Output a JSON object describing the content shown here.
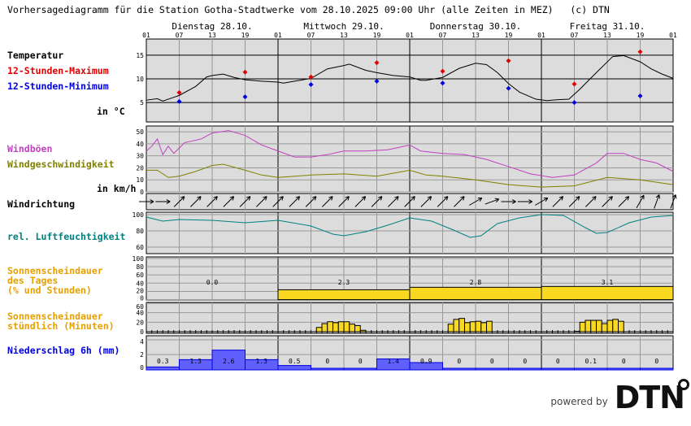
{
  "title": "Vorhersagediagramm für die Station Gotha-Stadtwerke vom 28.10.2025 09:00 Uhr (alle Zeiten in MEZ)   (c) DTN",
  "labels": {
    "temperature": "Temperatur",
    "max12": "12-Stunden-Maximum",
    "min12": "12-Stunden-Minimum",
    "unit_temp": "in °C",
    "gusts": "Windböen",
    "wind_speed": "Windgeschwindigkeit",
    "unit_wind": "in km/h",
    "wind_dir": "Windrichtung",
    "humidity": "rel. Luftfeuchtigkeit",
    "sun_daily": "Sonnenscheindauer\ndes Tages\n(% und Stunden)",
    "sun_hourly": "Sonnenscheindauer\nstündlich (Minuten)",
    "precip": "Niederschlag 6h (mm)"
  },
  "logo": {
    "powered_by": "powered by",
    "brand": "DTN"
  },
  "colors": {
    "max": "#e00000",
    "min": "#0000e0",
    "gusts": "#c040c0",
    "wind": "#808000",
    "humidity": "#008080",
    "sun": "#f8d820",
    "sun_label": "#e8a000",
    "precip": "#6060ff",
    "panel_bg": "#dcdcdc"
  },
  "chart_data": {
    "type": "line",
    "days": [
      "Dienstag 28.10.",
      "Mittwoch 29.10.",
      "Donnerstag 30.10.",
      "Freitag 31.10."
    ],
    "hour_ticks": [
      "01",
      "07",
      "13",
      "19",
      "01",
      "07",
      "13",
      "19",
      "01",
      "07",
      "13",
      "19",
      "01",
      "07",
      "13",
      "19",
      "01"
    ],
    "x_unit": "hours since 28.10. 01:00",
    "temperature": {
      "ylim": [
        0.9,
        18.4
      ],
      "ticks": [
        5,
        10,
        15
      ],
      "curve": [
        [
          0,
          5.5
        ],
        [
          2,
          5.8
        ],
        [
          3,
          5.3
        ],
        [
          5,
          6.1
        ],
        [
          6,
          6.5
        ],
        [
          9,
          8.4
        ],
        [
          11,
          10.4
        ],
        [
          12,
          10.7
        ],
        [
          14,
          11.0
        ],
        [
          16,
          10.3
        ],
        [
          18,
          9.8
        ],
        [
          21,
          9.5
        ],
        [
          24,
          9.3
        ],
        [
          25,
          9.1
        ],
        [
          27,
          9.5
        ],
        [
          30,
          10.1
        ],
        [
          33,
          12.1
        ],
        [
          36,
          12.8
        ],
        [
          37,
          13.1
        ],
        [
          40,
          11.8
        ],
        [
          42,
          11.3
        ],
        [
          45,
          10.7
        ],
        [
          48,
          10.4
        ],
        [
          50,
          9.7
        ],
        [
          51,
          9.7
        ],
        [
          54,
          10.3
        ],
        [
          57,
          12.2
        ],
        [
          60,
          13.3
        ],
        [
          62,
          13.0
        ],
        [
          64,
          11.3
        ],
        [
          66,
          9.0
        ],
        [
          68,
          7.2
        ],
        [
          71,
          5.7
        ],
        [
          73,
          5.4
        ],
        [
          75,
          5.6
        ],
        [
          77,
          5.7
        ],
        [
          79,
          7.8
        ],
        [
          82,
          11.3
        ],
        [
          85,
          14.7
        ],
        [
          87,
          14.9
        ],
        [
          90,
          13.6
        ],
        [
          92,
          12.1
        ],
        [
          94,
          11.0
        ],
        [
          96,
          10.1
        ]
      ],
      "max12": [
        [
          6,
          7.1
        ],
        [
          18,
          11.4
        ],
        [
          30,
          10.4
        ],
        [
          42,
          13.4
        ],
        [
          54,
          11.6
        ],
        [
          66,
          13.8
        ],
        [
          78,
          8.9
        ],
        [
          90,
          15.7
        ]
      ],
      "min12": [
        [
          6,
          5.2
        ],
        [
          18,
          6.2
        ],
        [
          30,
          8.8
        ],
        [
          42,
          9.5
        ],
        [
          54,
          9.1
        ],
        [
          66,
          8.0
        ],
        [
          78,
          5.0
        ],
        [
          90,
          6.4
        ]
      ]
    },
    "wind": {
      "ylim": [
        0,
        54.8
      ],
      "ticks": [
        0,
        10,
        20,
        30,
        40,
        50
      ],
      "gusts": [
        [
          0,
          34
        ],
        [
          1,
          38
        ],
        [
          2,
          44
        ],
        [
          3,
          31
        ],
        [
          4,
          38
        ],
        [
          5,
          32
        ],
        [
          7,
          41
        ],
        [
          10,
          44
        ],
        [
          12,
          49
        ],
        [
          15,
          51
        ],
        [
          18,
          47
        ],
        [
          21,
          39
        ],
        [
          24,
          34
        ],
        [
          27,
          29
        ],
        [
          30,
          29
        ],
        [
          33,
          31
        ],
        [
          36,
          34
        ],
        [
          40,
          34
        ],
        [
          44,
          35
        ],
        [
          48,
          39
        ],
        [
          50,
          34
        ],
        [
          54,
          32
        ],
        [
          58,
          31
        ],
        [
          62,
          27
        ],
        [
          66,
          21
        ],
        [
          70,
          15
        ],
        [
          74,
          12
        ],
        [
          78,
          14
        ],
        [
          82,
          24
        ],
        [
          84,
          32
        ],
        [
          87,
          32
        ],
        [
          90,
          27
        ],
        [
          93,
          24
        ],
        [
          96,
          17
        ]
      ],
      "speed": [
        [
          0,
          18
        ],
        [
          2,
          18
        ],
        [
          4,
          12
        ],
        [
          6,
          13
        ],
        [
          9,
          17
        ],
        [
          12,
          22
        ],
        [
          14,
          23
        ],
        [
          18,
          18
        ],
        [
          21,
          14
        ],
        [
          24,
          12
        ],
        [
          30,
          14
        ],
        [
          36,
          15
        ],
        [
          42,
          13
        ],
        [
          48,
          18
        ],
        [
          51,
          14
        ],
        [
          54,
          13
        ],
        [
          60,
          10
        ],
        [
          66,
          6
        ],
        [
          72,
          4
        ],
        [
          78,
          5
        ],
        [
          84,
          12
        ],
        [
          90,
          10
        ],
        [
          96,
          6
        ]
      ]
    },
    "wind_direction_deg": [
      270,
      270,
      225,
      225,
      225,
      225,
      225,
      225,
      225,
      225,
      225,
      225,
      225,
      225,
      225,
      225,
      225,
      225,
      225,
      225,
      240,
      250,
      270,
      270,
      240,
      225,
      225,
      225,
      225,
      225,
      210,
      200,
      200
    ],
    "humidity": {
      "ylim": [
        52,
        103
      ],
      "ticks": [
        60,
        80,
        100
      ],
      "values": [
        [
          0,
          97
        ],
        [
          3,
          92
        ],
        [
          6,
          94
        ],
        [
          12,
          93
        ],
        [
          18,
          90
        ],
        [
          24,
          93
        ],
        [
          30,
          86
        ],
        [
          34,
          76
        ],
        [
          36,
          74
        ],
        [
          40,
          79
        ],
        [
          44,
          87
        ],
        [
          48,
          96
        ],
        [
          52,
          92
        ],
        [
          56,
          81
        ],
        [
          59,
          72
        ],
        [
          61,
          74
        ],
        [
          64,
          89
        ],
        [
          68,
          96
        ],
        [
          72,
          100
        ],
        [
          76,
          99
        ],
        [
          80,
          84
        ],
        [
          82,
          77
        ],
        [
          84,
          78
        ],
        [
          88,
          90
        ],
        [
          92,
          97
        ],
        [
          96,
          99
        ]
      ]
    },
    "sun_daily": {
      "ylim": [
        0,
        100
      ],
      "ticks": [
        0,
        20,
        40,
        60,
        80,
        100
      ],
      "percent": [
        0,
        24,
        30,
        32
      ],
      "hours_labels": [
        "0.0",
        "2.3",
        "2.8",
        "3.1"
      ]
    },
    "sun_hourly": {
      "ylim": [
        0,
        60
      ],
      "ticks": [
        0,
        20,
        40,
        60
      ],
      "minutes": [
        [
          31,
          9
        ],
        [
          32,
          17
        ],
        [
          33,
          21
        ],
        [
          34,
          19
        ],
        [
          35,
          21
        ],
        [
          36,
          21
        ],
        [
          37,
          16
        ],
        [
          38,
          13
        ],
        [
          39,
          3
        ],
        [
          55,
          16
        ],
        [
          56,
          26
        ],
        [
          57,
          28
        ],
        [
          58,
          19
        ],
        [
          59,
          21
        ],
        [
          60,
          22
        ],
        [
          61,
          19
        ],
        [
          62,
          22
        ],
        [
          78,
          1
        ],
        [
          79,
          20
        ],
        [
          80,
          24
        ],
        [
          81,
          24
        ],
        [
          82,
          24
        ],
        [
          83,
          17
        ],
        [
          84,
          24
        ],
        [
          85,
          26
        ],
        [
          86,
          22
        ]
      ]
    },
    "precip_6h": {
      "ylim": [
        0,
        4
      ],
      "ticks": [
        0,
        2,
        4
      ],
      "values": [
        0.3,
        1.3,
        2.6,
        1.3,
        0.5,
        0,
        0,
        1.4,
        0.9,
        0,
        0,
        0,
        0,
        0.1,
        0,
        0
      ],
      "labels": [
        "0.3",
        "1.3",
        "2.6",
        "1.3",
        "0.5",
        "0",
        "0",
        "1.4",
        "0.9",
        "0",
        "0",
        "0",
        "0",
        "0.1",
        "0",
        "0"
      ]
    }
  }
}
